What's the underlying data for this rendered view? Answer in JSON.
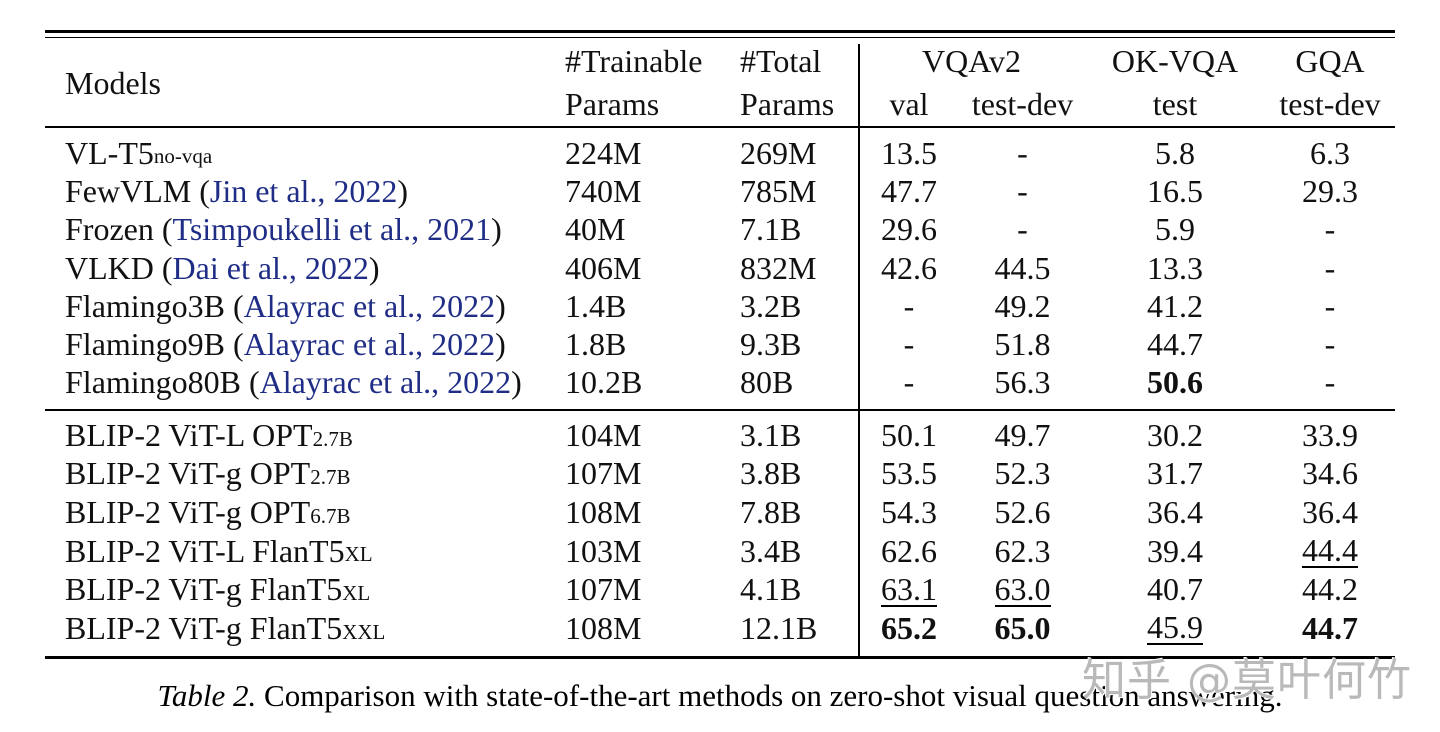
{
  "colors": {
    "citation": "#1f2d86",
    "rule": "#000000",
    "watermark": "#b9b9b9"
  },
  "table": {
    "header": {
      "models": "Models",
      "trainable_line1": "#Trainable",
      "trainable_line2": "Params",
      "total_line1": "#Total",
      "total_line2": "Params",
      "group_vqav2": "VQAv2",
      "sub_val": "val",
      "sub_testdev": "test-dev",
      "group_okvqa": "OK-VQA",
      "sub_test": "test",
      "group_gqa": "GQA",
      "sub_gqa_testdev": "test-dev"
    },
    "sections": [
      {
        "rows": [
          {
            "model": {
              "name": "VL-T5",
              "sub": "no-vqa"
            },
            "trainable": "224M",
            "total": "269M",
            "vqav2_val": "13.5",
            "vqav2_testdev": "-",
            "okvqa_test": "5.8",
            "gqa_testdev": "6.3"
          },
          {
            "model": {
              "name": "FewVLM",
              "cite": "Jin et al., 2022"
            },
            "trainable": "740M",
            "total": "785M",
            "vqav2_val": "47.7",
            "vqav2_testdev": "-",
            "okvqa_test": "16.5",
            "gqa_testdev": "29.3"
          },
          {
            "model": {
              "name": "Frozen",
              "cite": "Tsimpoukelli et al., 2021"
            },
            "trainable": "40M",
            "total": "7.1B",
            "vqav2_val": "29.6",
            "vqav2_testdev": "-",
            "okvqa_test": "5.9",
            "gqa_testdev": "-"
          },
          {
            "model": {
              "name": "VLKD",
              "cite": "Dai et al., 2022"
            },
            "trainable": "406M",
            "total": "832M",
            "vqav2_val": "42.6",
            "vqav2_testdev": "44.5",
            "okvqa_test": "13.3",
            "gqa_testdev": "-"
          },
          {
            "model": {
              "name": "Flamingo3B",
              "cite": "Alayrac et al., 2022"
            },
            "trainable": "1.4B",
            "total": "3.2B",
            "vqav2_val": "-",
            "vqav2_testdev": "49.2",
            "okvqa_test": "41.2",
            "gqa_testdev": "-"
          },
          {
            "model": {
              "name": "Flamingo9B",
              "cite": "Alayrac et al., 2022"
            },
            "trainable": "1.8B",
            "total": "9.3B",
            "vqav2_val": "-",
            "vqav2_testdev": "51.8",
            "okvqa_test": "44.7",
            "gqa_testdev": "-"
          },
          {
            "model": {
              "name": "Flamingo80B",
              "cite": "Alayrac et al., 2022"
            },
            "trainable": "10.2B",
            "total": "80B",
            "vqav2_val": "-",
            "vqav2_testdev": "56.3",
            "okvqa_test": {
              "v": "50.6",
              "em": "bold"
            },
            "gqa_testdev": "-"
          }
        ]
      },
      {
        "rows": [
          {
            "model": {
              "name": "BLIP-2 ViT-L OPT",
              "sub": "2.7B"
            },
            "trainable": "104M",
            "total": "3.1B",
            "vqav2_val": "50.1",
            "vqav2_testdev": "49.7",
            "okvqa_test": "30.2",
            "gqa_testdev": "33.9"
          },
          {
            "model": {
              "name": "BLIP-2 ViT-g OPT",
              "sub": "2.7B"
            },
            "trainable": "107M",
            "total": "3.8B",
            "vqav2_val": "53.5",
            "vqav2_testdev": "52.3",
            "okvqa_test": "31.7",
            "gqa_testdev": "34.6"
          },
          {
            "model": {
              "name": "BLIP-2 ViT-g OPT",
              "sub": "6.7B"
            },
            "trainable": "108M",
            "total": "7.8B",
            "vqav2_val": "54.3",
            "vqav2_testdev": "52.6",
            "okvqa_test": "36.4",
            "gqa_testdev": "36.4"
          },
          {
            "model": {
              "name": "BLIP-2 ViT-L FlanT5",
              "sub": "XL"
            },
            "trainable": "103M",
            "total": "3.4B",
            "vqav2_val": "62.6",
            "vqav2_testdev": "62.3",
            "okvqa_test": "39.4",
            "gqa_testdev": {
              "v": "44.4",
              "em": "underline"
            }
          },
          {
            "model": {
              "name": "BLIP-2 ViT-g FlanT5",
              "sub": "XL"
            },
            "trainable": "107M",
            "total": "4.1B",
            "vqav2_val": {
              "v": "63.1",
              "em": "underline"
            },
            "vqav2_testdev": {
              "v": "63.0",
              "em": "underline"
            },
            "okvqa_test": "40.7",
            "gqa_testdev": "44.2"
          },
          {
            "model": {
              "name": "BLIP-2 ViT-g FlanT5",
              "sub": "XXL"
            },
            "trainable": "108M",
            "total": "12.1B",
            "vqav2_val": {
              "v": "65.2",
              "em": "bold"
            },
            "vqav2_testdev": {
              "v": "65.0",
              "em": "bold"
            },
            "okvqa_test": {
              "v": "45.9",
              "em": "underline"
            },
            "gqa_testdev": {
              "v": "44.7",
              "em": "bold"
            }
          }
        ]
      }
    ]
  },
  "caption": {
    "label": "Table 2.",
    "text": "Comparison with state-of-the-art methods on zero-shot visual question answering."
  },
  "watermark": "知乎 @莫叶何竹"
}
